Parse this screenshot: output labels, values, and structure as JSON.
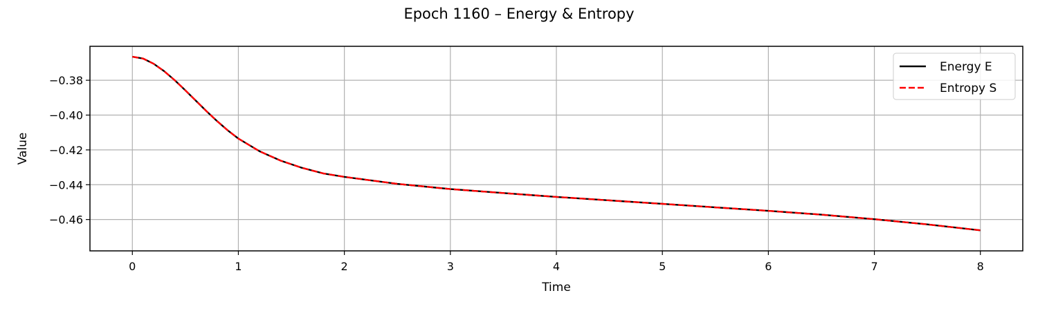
{
  "chart_data": {
    "type": "line",
    "title": "Epoch 1160 – Energy & Entropy",
    "xlabel": "Time",
    "ylabel": "Value",
    "xlim": [
      -0.4,
      8.4
    ],
    "ylim": [
      -0.478,
      -0.3605
    ],
    "xticks": [
      0,
      1,
      2,
      3,
      4,
      5,
      6,
      7,
      8
    ],
    "xtick_labels": [
      "0",
      "1",
      "2",
      "3",
      "4",
      "5",
      "6",
      "7",
      "8"
    ],
    "yticks": [
      -0.46,
      -0.44,
      -0.42,
      -0.4,
      -0.38
    ],
    "ytick_labels": [
      "−0.46",
      "−0.44",
      "−0.42",
      "−0.40",
      "−0.38"
    ],
    "grid": true,
    "legend_position": "top-right",
    "x": [
      0,
      0.1,
      0.2,
      0.3,
      0.4,
      0.5,
      0.6,
      0.7,
      0.8,
      0.9,
      1.0,
      1.2,
      1.4,
      1.6,
      1.8,
      2.0,
      2.5,
      3.0,
      3.5,
      4.0,
      4.5,
      5.0,
      5.5,
      6.0,
      6.5,
      7.0,
      7.5,
      8.0
    ],
    "series": [
      {
        "name": "Energy E",
        "color": "#000000",
        "style": "solid",
        "values": [
          -0.3665,
          -0.3675,
          -0.3705,
          -0.3748,
          -0.38,
          -0.3858,
          -0.3918,
          -0.3978,
          -0.4035,
          -0.4088,
          -0.4135,
          -0.4208,
          -0.4262,
          -0.4303,
          -0.4335,
          -0.4355,
          -0.4395,
          -0.4425,
          -0.4448,
          -0.447,
          -0.449,
          -0.451,
          -0.453,
          -0.455,
          -0.4572,
          -0.4598,
          -0.4628,
          -0.4662
        ]
      },
      {
        "name": "Entropy S",
        "color": "#ff0000",
        "style": "dashed",
        "values": [
          -0.3665,
          -0.3675,
          -0.3705,
          -0.3748,
          -0.38,
          -0.3858,
          -0.3918,
          -0.3978,
          -0.4035,
          -0.4088,
          -0.4135,
          -0.4208,
          -0.4262,
          -0.4303,
          -0.4335,
          -0.4355,
          -0.4395,
          -0.4425,
          -0.4448,
          -0.447,
          -0.449,
          -0.451,
          -0.453,
          -0.455,
          -0.4572,
          -0.4598,
          -0.4628,
          -0.4662
        ]
      }
    ]
  }
}
